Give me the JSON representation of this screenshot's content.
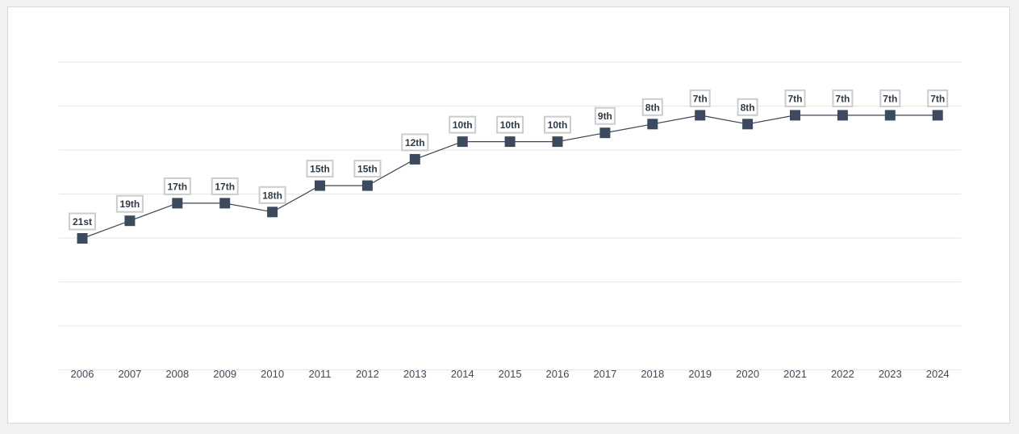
{
  "chart_data": {
    "type": "line",
    "title": "",
    "xlabel": "",
    "ylabel": "",
    "categories": [
      "2006",
      "2007",
      "2008",
      "2009",
      "2010",
      "2011",
      "2012",
      "2013",
      "2014",
      "2015",
      "2016",
      "2017",
      "2018",
      "2019",
      "2020",
      "2021",
      "2022",
      "2023",
      "2024"
    ],
    "series": [
      {
        "values": [
          21,
          19,
          17,
          17,
          18,
          15,
          15,
          12,
          10,
          10,
          10,
          9,
          8,
          7,
          8,
          7,
          7,
          7,
          7
        ],
        "labels": [
          "21st",
          "19th",
          "17th",
          "17th",
          "18th",
          "15th",
          "15th",
          "12th",
          "10th",
          "10th",
          "10th",
          "9th",
          "8th",
          "7th",
          "8th",
          "7th",
          "7th",
          "7th",
          "7th"
        ]
      }
    ],
    "y_inverted": true,
    "grid": true,
    "legend": "none",
    "colors": {
      "line": "#3a4452",
      "marker": "#3b4a5c",
      "grid": "#e6e6e6",
      "label_border": "#cccccc",
      "tick_text": "#3d4a5a"
    }
  }
}
